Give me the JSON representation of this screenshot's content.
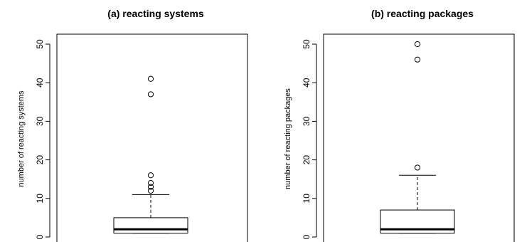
{
  "chart_data": [
    {
      "type": "box",
      "title": "(a) reacting systems",
      "xlabel": "",
      "ylabel": "number of reacting systems",
      "ylim": [
        0,
        50
      ],
      "yticks": [
        0,
        10,
        20,
        30,
        40,
        50
      ],
      "box": {
        "whisker_low": 1,
        "q1": 1,
        "median": 2,
        "q3": 5,
        "whisker_high": 11
      },
      "outliers": [
        12,
        13,
        14,
        16,
        37,
        41
      ]
    },
    {
      "type": "box",
      "title": "(b) reacting packages",
      "xlabel": "",
      "ylabel": "number of reacting packages",
      "ylim": [
        0,
        50
      ],
      "yticks": [
        0,
        10,
        20,
        30,
        40,
        50
      ],
      "box": {
        "whisker_low": 1,
        "q1": 1,
        "median": 2,
        "q3": 7,
        "whisker_high": 16
      },
      "outliers": [
        18,
        46,
        50
      ]
    }
  ]
}
